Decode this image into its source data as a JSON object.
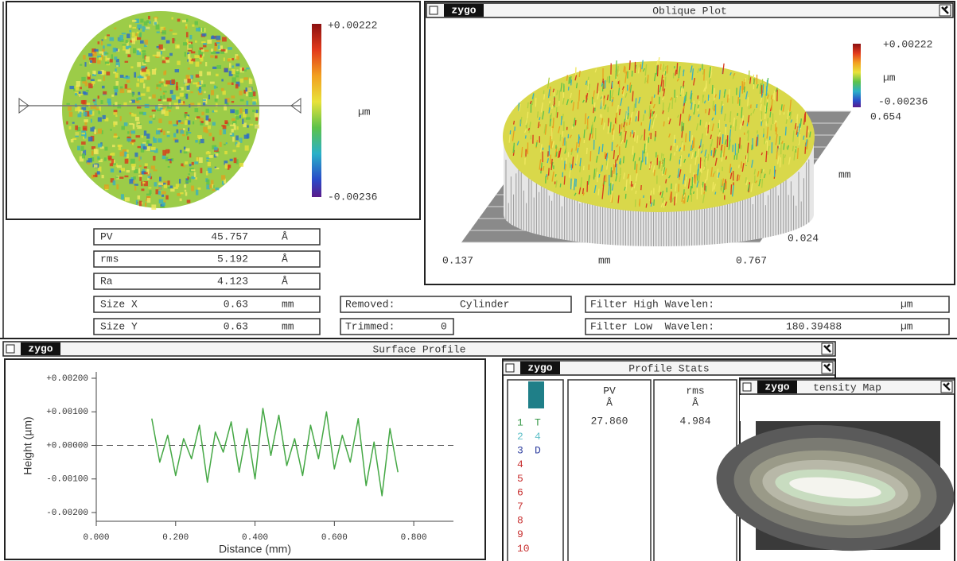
{
  "surface_map": {
    "scale_max": "+0.00222",
    "unit": "µm",
    "scale_min": "-0.00236"
  },
  "results": {
    "rows": [
      [
        "PV",
        "45.757",
        "Å"
      ],
      [
        "rms",
        "5.192",
        "Å"
      ],
      [
        "Ra",
        "4.123",
        "Å"
      ],
      [
        "Size X",
        "0.63",
        "mm"
      ],
      [
        "Size Y",
        "0.63",
        "mm"
      ]
    ]
  },
  "settings": {
    "removed": [
      "Removed:",
      "Cylinder"
    ],
    "trimmed": [
      "Trimmed:",
      "0"
    ],
    "filter_high": [
      "Filter High Wavelen:",
      "µm"
    ],
    "filter_low": [
      "Filter Low  Wavelen:",
      "180.39488",
      "µm"
    ]
  },
  "oblique_plot": {
    "logo": "zygo",
    "title": "Oblique Plot",
    "scale_max": "+0.00222",
    "scale_unit": "µm",
    "scale_min": "-0.00236",
    "y_max": "0.654",
    "y_unit": "mm",
    "y_min": "0.024",
    "x_min": "0.137",
    "x_unit": "mm",
    "x_max": "0.767"
  },
  "surface_profile": {
    "logo": "zygo",
    "title": "Surface Profile"
  },
  "chart_data": {
    "type": "line",
    "xlabel": "Distance (mm)",
    "ylabel": "Height (µm)",
    "x": [
      0.14,
      0.16,
      0.18,
      0.2,
      0.22,
      0.24,
      0.26,
      0.28,
      0.3,
      0.32,
      0.34,
      0.36,
      0.38,
      0.4,
      0.42,
      0.44,
      0.46,
      0.48,
      0.5,
      0.52,
      0.54,
      0.56,
      0.58,
      0.6,
      0.62,
      0.64,
      0.66,
      0.68,
      0.7,
      0.72,
      0.74,
      0.76
    ],
    "values": [
      0.0008,
      -0.0005,
      0.0003,
      -0.0009,
      0.0002,
      -0.0004,
      0.0006,
      -0.0011,
      0.0004,
      -0.0002,
      0.0007,
      -0.0008,
      0.0005,
      -0.001,
      0.0011,
      -0.0003,
      0.0009,
      -0.0006,
      0.0002,
      -0.0009,
      0.0006,
      -0.0004,
      0.001,
      -0.0007,
      0.0003,
      -0.0005,
      0.0008,
      -0.0012,
      0.0001,
      -0.0015,
      0.0005,
      -0.0008
    ],
    "color": "#45a845",
    "xlim": [
      0,
      0.9
    ],
    "ylim": [
      -0.002,
      0.002
    ],
    "xticks": [
      {
        "value": 0,
        "label": "0.000"
      },
      {
        "value": 0.2,
        "label": "0.200"
      },
      {
        "value": 0.4,
        "label": "0.400"
      },
      {
        "value": 0.6,
        "label": "0.600"
      },
      {
        "value": 0.8,
        "label": "0.800"
      }
    ],
    "yticks": [
      {
        "value": 0.002,
        "label": "+0.00200"
      },
      {
        "value": 0.001,
        "label": "+0.00100"
      },
      {
        "value": 0,
        "label": "+0.00000"
      },
      {
        "value": -0.001,
        "label": "-0.00100"
      },
      {
        "value": -0.002,
        "label": "-0.00200"
      }
    ]
  },
  "profile_stats": {
    "logo": "zygo",
    "title": "Profile Stats",
    "rows": [
      [
        "1",
        "T"
      ],
      [
        "2",
        "4"
      ],
      [
        "3",
        "D"
      ],
      [
        "4"
      ],
      [
        "5"
      ],
      [
        "6"
      ],
      [
        "7"
      ],
      [
        "8"
      ],
      [
        "9"
      ],
      [
        "10"
      ]
    ],
    "columns": [
      {
        "header": "PV",
        "unit": "Å",
        "value": "27.860"
      },
      {
        "header": "rms",
        "unit": "Å",
        "value": "4.984"
      }
    ]
  },
  "intensity_map": {
    "logo": "zygo",
    "title": "tensity Map"
  }
}
